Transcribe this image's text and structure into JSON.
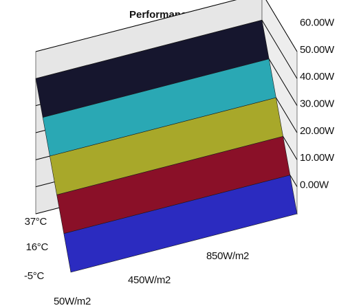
{
  "chart_data": {
    "type": "surface-3d",
    "title": "Performance Matrix",
    "x_categories": [
      "50W/m2",
      "450W/m2",
      "850W/m2"
    ],
    "y_categories": [
      "-5°C",
      "16°C",
      "37°C"
    ],
    "z_ticks": [
      "0.00W",
      "10.00W",
      "20.00W",
      "30.00W",
      "40.00W",
      "50.00W",
      "60.00W"
    ],
    "zlim": [
      0,
      60
    ],
    "grid": true,
    "colors": {
      "wall": "#e6e6e6",
      "floor": "#8c8c8c",
      "gridline": "#000000",
      "bands": [
        "#2b2bc0",
        "#8a1028",
        "#a8a82a",
        "#2aa8b4",
        "#16162e"
      ]
    },
    "bands": [
      {
        "from": 0,
        "to": 10,
        "color": "#2b2bc0"
      },
      {
        "from": 10,
        "to": 20,
        "color": "#8a1028"
      },
      {
        "from": 20,
        "to": 30,
        "color": "#a8a82a"
      },
      {
        "from": 30,
        "to": 40,
        "color": "#2aa8b4"
      },
      {
        "from": 40,
        "to": 50,
        "color": "#16162e"
      }
    ],
    "surface_values": [
      [
        0,
        0,
        0
      ],
      [
        25,
        25,
        25
      ],
      [
        50,
        50,
        50
      ]
    ]
  }
}
